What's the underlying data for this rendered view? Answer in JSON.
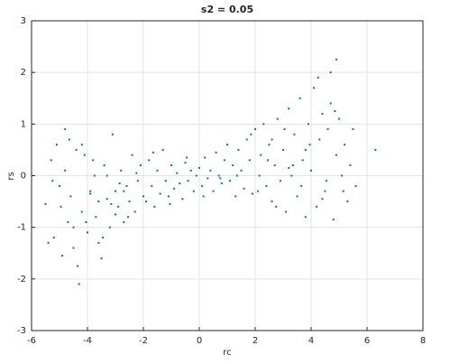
{
  "chart_data": {
    "type": "scatter",
    "title": "s2 = 0.05",
    "x_label": "rc",
    "y_label": "rs",
    "color": "#0072bd",
    "grid": true,
    "xlim": [
      -6,
      8
    ],
    "xticks": [
      -6,
      -4,
      -2,
      0,
      2,
      4,
      6,
      8
    ],
    "ylim": [
      -3,
      3
    ],
    "yticks": [
      -3,
      -2,
      -1,
      0,
      1,
      2,
      3
    ],
    "series": [
      {
        "x": [
          -5.5,
          -5.4,
          -5.3,
          -5.2,
          -5.1,
          -5.0,
          -4.9,
          -4.8,
          -4.7,
          -4.6,
          -4.5,
          -4.4,
          -4.3,
          -4.2,
          -4.1,
          -4.0,
          -3.9,
          -3.8,
          -3.7,
          -3.6,
          -3.5,
          -3.4,
          -3.3,
          -3.2,
          -3.1,
          -3.0,
          -2.9,
          -2.8,
          -2.7,
          -2.6,
          -2.5,
          -2.4,
          -2.3,
          -2.2,
          -2.1,
          -2.0,
          -5.25,
          -4.95,
          -4.65,
          -4.35,
          -4.05,
          -3.75,
          -3.45,
          -3.15,
          -2.85,
          -2.55,
          -2.25,
          -4.8,
          -4.5,
          -4.2,
          -3.9,
          -3.6,
          -3.3,
          -3.0,
          -2.7,
          -1.9,
          -1.8,
          -1.7,
          -1.6,
          -1.5,
          -1.4,
          -1.3,
          -1.2,
          -1.1,
          -1.0,
          -0.9,
          -0.8,
          -0.7,
          -0.6,
          -0.5,
          -0.4,
          -0.3,
          -0.2,
          -0.1,
          0.0,
          0.1,
          0.2,
          0.3,
          0.4,
          0.5,
          0.6,
          0.7,
          0.8,
          0.9,
          1.0,
          1.1,
          1.2,
          1.3,
          1.4,
          1.5,
          1.6,
          1.7,
          1.8,
          1.9,
          -1.65,
          -1.05,
          -0.45,
          0.15,
          0.75,
          1.35,
          1.85,
          2.0,
          2.1,
          2.2,
          2.3,
          2.4,
          2.5,
          2.6,
          2.7,
          2.8,
          2.9,
          3.0,
          3.1,
          3.2,
          3.3,
          3.4,
          3.5,
          3.6,
          3.7,
          3.8,
          3.9,
          4.0,
          4.1,
          4.2,
          4.3,
          4.4,
          4.5,
          4.6,
          4.7,
          4.8,
          4.9,
          5.0,
          5.1,
          5.2,
          5.3,
          5.4,
          5.5,
          2.15,
          2.45,
          2.75,
          3.05,
          3.35,
          3.65,
          3.95,
          4.25,
          4.55,
          4.85,
          5.15,
          2.6,
          3.2,
          3.8,
          4.4,
          4.7,
          4.9,
          6.3,
          5.6
        ],
        "values": [
          -0.55,
          -1.3,
          0.3,
          -1.2,
          0.6,
          -0.2,
          -1.55,
          0.1,
          -0.9,
          -0.4,
          -1.4,
          0.5,
          -2.1,
          -0.7,
          0.4,
          -1.1,
          -0.3,
          0.3,
          -0.8,
          -0.5,
          -1.6,
          0.2,
          -0.45,
          -1.0,
          0.8,
          -0.3,
          -0.6,
          0.1,
          -0.9,
          -0.2,
          -0.5,
          0.4,
          -0.7,
          -0.1,
          0.2,
          -0.4,
          -0.1,
          -0.6,
          0.7,
          -1.75,
          -0.9,
          0.0,
          -1.2,
          -0.55,
          -0.15,
          -0.8,
          0.05,
          0.9,
          -1.0,
          0.6,
          -0.35,
          -1.3,
          0.0,
          -0.75,
          -0.3,
          -0.5,
          0.3,
          -0.2,
          -0.6,
          0.1,
          -0.35,
          0.5,
          -0.1,
          -0.4,
          0.2,
          -0.25,
          0.05,
          -0.15,
          -0.45,
          0.25,
          -0.1,
          0.1,
          -0.3,
          0.0,
          0.15,
          -0.2,
          0.35,
          -0.05,
          0.1,
          -0.3,
          0.45,
          0.0,
          -0.15,
          0.3,
          0.6,
          -0.1,
          0.2,
          -0.4,
          0.5,
          0.1,
          -0.25,
          0.7,
          0.3,
          -0.35,
          0.45,
          -0.55,
          0.35,
          -0.4,
          -0.05,
          0.0,
          0.8,
          0.9,
          -0.3,
          0.4,
          1.0,
          -0.2,
          0.6,
          -0.5,
          0.2,
          1.1,
          -0.1,
          0.5,
          -0.7,
          1.3,
          0.0,
          0.8,
          -0.4,
          1.5,
          0.3,
          -0.8,
          1.0,
          0.1,
          1.7,
          -0.6,
          0.7,
          1.2,
          -0.3,
          0.9,
          1.4,
          -0.85,
          0.4,
          1.1,
          0.0,
          0.6,
          -0.5,
          0.2,
          0.9,
          0.0,
          0.3,
          -0.6,
          0.9,
          0.2,
          -0.2,
          0.6,
          1.9,
          -0.1,
          1.25,
          -0.3,
          0.7,
          0.15,
          0.5,
          -0.45,
          2.0,
          2.25,
          0.5,
          -0.2
        ]
      }
    ]
  }
}
